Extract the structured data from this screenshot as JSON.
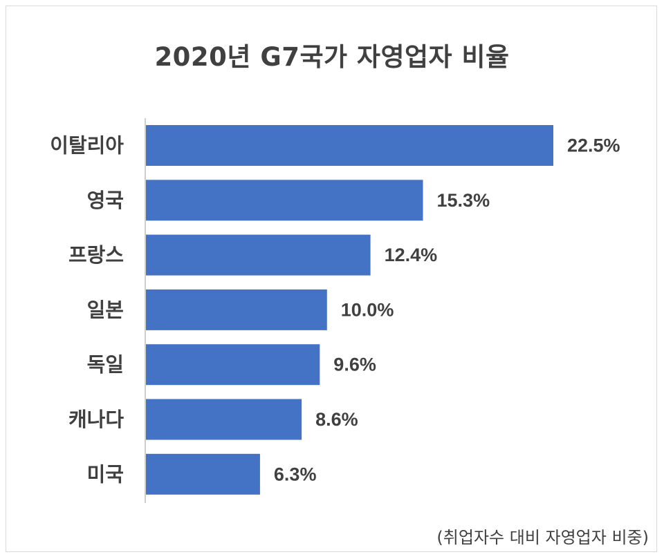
{
  "chart_data": {
    "type": "bar",
    "orientation": "horizontal",
    "title": "2020년 G7국가 자영업자 비율",
    "categories": [
      "이탈리아",
      "영국",
      "프랑스",
      "일본",
      "독일",
      "캐나다",
      "미국"
    ],
    "values": [
      22.5,
      15.3,
      12.4,
      10.0,
      9.6,
      8.6,
      6.3
    ],
    "data_labels": [
      "22.5%",
      "15.3%",
      "12.4%",
      "10.0%",
      "9.6%",
      "8.6%",
      "6.3%"
    ],
    "value_unit": "%",
    "bar_color": "#4472c4",
    "xlim": [
      0,
      22.5
    ],
    "xlabel": "",
    "ylabel": "",
    "grid": false,
    "legend": "none",
    "footnote": "(취업자수 대비 자영업자 비중)"
  },
  "colors": {
    "text": "#404040",
    "border": "#d9d9d9",
    "axis": "#bfbfbf"
  }
}
